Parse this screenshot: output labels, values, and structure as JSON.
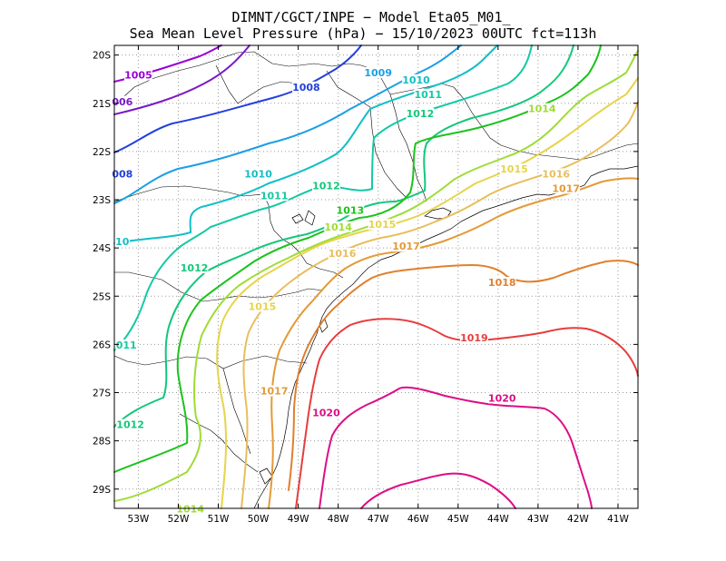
{
  "title": {
    "line1": "DIMNT/CGCT/INPE −  Model Eta05_M01_",
    "line2": "Sea Mean Level Pressure (hPa) − 15/10/2023 00UTC fct=113h"
  },
  "map": {
    "lon_range": [
      -53.6,
      -40.5
    ],
    "lat_range": [
      -29.4,
      -19.8
    ],
    "x_ticks": [
      "53W",
      "52W",
      "51W",
      "50W",
      "49W",
      "48W",
      "47W",
      "46W",
      "45W",
      "44W",
      "43W",
      "42W",
      "41W"
    ],
    "y_ticks": [
      "20S",
      "21S",
      "22S",
      "23S",
      "24S",
      "25S",
      "26S",
      "27S",
      "28S",
      "29S"
    ],
    "grid": "dotted"
  },
  "isobars": [
    {
      "level": 1005,
      "color": "#9b00d6"
    },
    {
      "level": 1006,
      "color": "#7a18c9"
    },
    {
      "level": 1008,
      "color": "#2340dd"
    },
    {
      "level": 1009,
      "color": "#1a9fe6"
    },
    {
      "level": 1010,
      "color": "#10bfc6"
    },
    {
      "level": 1011,
      "color": "#13c9a4"
    },
    {
      "level": 1012,
      "color": "#12c77a"
    },
    {
      "level": 1013,
      "color": "#1bc31b"
    },
    {
      "level": 1014,
      "color": "#9fdc36"
    },
    {
      "level": 1015,
      "color": "#e6d44a"
    },
    {
      "level": 1016,
      "color": "#e8be5c"
    },
    {
      "level": 1017,
      "color": "#e39a36"
    },
    {
      "level": 1018,
      "color": "#e0802c"
    },
    {
      "level": 1019,
      "color": "#e63d3d"
    },
    {
      "level": 1020,
      "color": "#dd0d86"
    }
  ],
  "labels": [
    {
      "text": "1005",
      "lon": -53.0,
      "lat": -20.45,
      "color": "#9b00d6"
    },
    {
      "text": "006",
      "lon": -53.4,
      "lat": -21.0,
      "color": "#7a18c9"
    },
    {
      "text": "1008",
      "lon": -48.8,
      "lat": -20.7,
      "color": "#2340dd"
    },
    {
      "text": "008",
      "lon": -53.4,
      "lat": -22.5,
      "color": "#2340dd"
    },
    {
      "text": "1009",
      "lon": -47.0,
      "lat": -20.4,
      "color": "#1a9fe6"
    },
    {
      "text": "1010",
      "lon": -46.05,
      "lat": -20.55,
      "color": "#10bfc6"
    },
    {
      "text": "1010",
      "lon": -50.0,
      "lat": -22.5,
      "color": "#10bfc6"
    },
    {
      "text": "10",
      "lon": -53.4,
      "lat": -23.9,
      "color": "#10bfc6"
    },
    {
      "text": "1011",
      "lon": -45.75,
      "lat": -20.85,
      "color": "#13c9a4"
    },
    {
      "text": "1011",
      "lon": -49.6,
      "lat": -22.95,
      "color": "#13c9a4"
    },
    {
      "text": "011",
      "lon": -53.3,
      "lat": -26.05,
      "color": "#13c9a4"
    },
    {
      "text": "1012",
      "lon": -45.95,
      "lat": -21.25,
      "color": "#12c77a"
    },
    {
      "text": "1012",
      "lon": -48.3,
      "lat": -22.75,
      "color": "#12c77a"
    },
    {
      "text": "1012",
      "lon": -51.6,
      "lat": -24.45,
      "color": "#12c77a"
    },
    {
      "text": "1012",
      "lon": -53.2,
      "lat": -27.7,
      "color": "#12c77a"
    },
    {
      "text": "1013",
      "lon": -47.7,
      "lat": -23.25,
      "color": "#1bc31b"
    },
    {
      "text": "1014",
      "lon": -42.9,
      "lat": -21.15,
      "color": "#9fdc36"
    },
    {
      "text": "1014",
      "lon": -48.0,
      "lat": -23.6,
      "color": "#9fdc36"
    },
    {
      "text": "1014",
      "lon": -51.7,
      "lat": -29.45,
      "color": "#9fdc36"
    },
    {
      "text": "1015",
      "lon": -43.6,
      "lat": -22.4,
      "color": "#e6d44a"
    },
    {
      "text": "1015",
      "lon": -46.9,
      "lat": -23.55,
      "color": "#e6d44a"
    },
    {
      "text": "1015",
      "lon": -49.9,
      "lat": -25.25,
      "color": "#e6d44a"
    },
    {
      "text": "1016",
      "lon": -42.55,
      "lat": -22.5,
      "color": "#e8be5c"
    },
    {
      "text": "1016",
      "lon": -47.9,
      "lat": -24.15,
      "color": "#e8be5c"
    },
    {
      "text": "1017",
      "lon": -42.3,
      "lat": -22.8,
      "color": "#e39a36"
    },
    {
      "text": "1017",
      "lon": -46.3,
      "lat": -24.0,
      "color": "#e39a36"
    },
    {
      "text": "1017",
      "lon": -49.6,
      "lat": -27.0,
      "color": "#e39a36"
    },
    {
      "text": "1018",
      "lon": -43.9,
      "lat": -24.75,
      "color": "#e0802c"
    },
    {
      "text": "1019",
      "lon": -44.6,
      "lat": -25.9,
      "color": "#e63d3d"
    },
    {
      "text": "1020",
      "lon": -48.3,
      "lat": -27.45,
      "color": "#dd0d86"
    },
    {
      "text": "1020",
      "lon": -43.9,
      "lat": -27.15,
      "color": "#dd0d86"
    }
  ]
}
